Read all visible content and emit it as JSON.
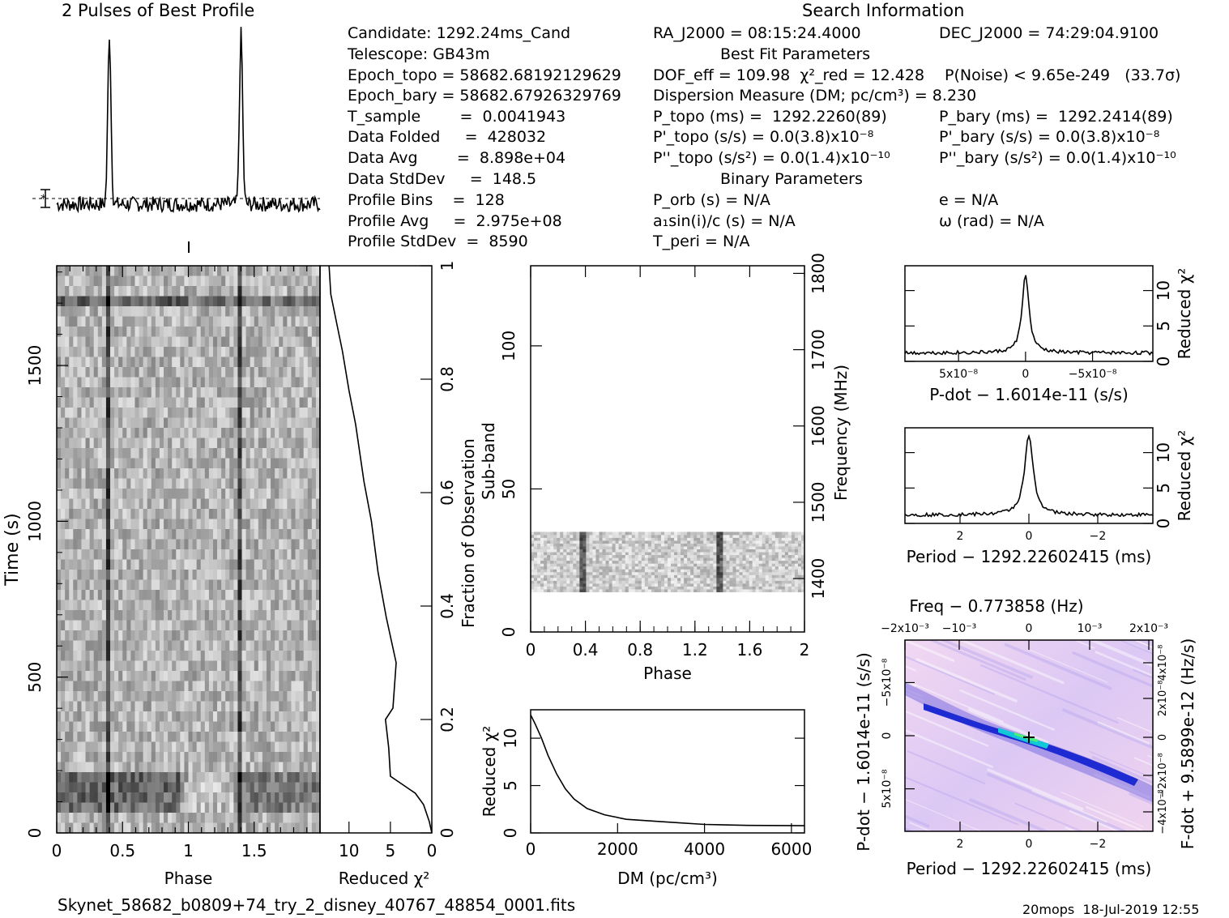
{
  "profile_title": "2 Pulses of Best Profile",
  "search_title": "Search Information",
  "info_left": [
    "Candidate:  1292.24ms_Cand",
    "Telescope:  GB43m",
    "Epoch_topo = 58682.68192129629",
    "Epoch_bary = 58682.67926329769",
    "T_sample        =  0.0041943",
    "Data Folded     =  428032",
    "Data Avg        =  8.898e+04",
    "Data StdDev     =  148.5",
    "Profile Bins    =  128",
    "Profile Avg     =  2.975e+08",
    "Profile StdDev  =  8590"
  ],
  "info_mid": [
    "RA_J2000 = 08:15:24.4000",
    "Best Fit Parameters",
    "DOF_eff = 109.98  χ²_red = 12.428",
    "Dispersion Measure (DM; pc/cm³) = 8.230",
    "P_topo (ms) =  1292.2260(89)",
    "P'_topo (s/s) = 0.0(3.8)x10⁻⁸",
    "P''_topo (s/s²) = 0.0(1.4)x10⁻¹⁰",
    "Binary Parameters",
    "P_orb (s) = N/A",
    "a₁sin(i)/c (s) = N/A",
    "T_peri = N/A"
  ],
  "info_right": [
    "DEC_J2000 = 74:29:04.9100",
    "P(Noise) < 9.65e-249   (33.7σ)",
    "P_bary (ms) =  1292.2414(89)",
    "P'_bary (s/s) = 0.0(3.8)x10⁻⁸",
    "P''_bary (s/s²) = 0.0(1.4)x10⁻¹⁰",
    "e = N/A",
    "ω (rad) = N/A"
  ],
  "footer": {
    "filename": "Skynet_58682_b0809+74_try_2_disney_40767_48854_0001.fits",
    "stamp": "20mops  18-Jul-2019 12:55"
  },
  "chart_data": [
    {
      "id": "best-profile",
      "type": "line",
      "title": "2 Pulses of Best Profile",
      "x_range": [
        0,
        2
      ],
      "peaks_phase": [
        0.4,
        1.4
      ],
      "peak_height_norm": 1.0,
      "baseline_norm": 0.0
    },
    {
      "id": "time-vs-phase",
      "type": "heatmap",
      "xlabel": "Phase",
      "ylabel": "Time (s)",
      "x_ticks": [
        "0",
        "0.5",
        "1",
        "1.5"
      ],
      "x_range": [
        0,
        2
      ],
      "y_ticks": [
        "0",
        "500",
        "1000",
        "1500"
      ],
      "y_range": [
        0,
        1820
      ],
      "pulse_phases": [
        0.4,
        1.4
      ]
    },
    {
      "id": "reduced-chi2-vs-time",
      "type": "line",
      "xlabel": "Reduced χ²",
      "ylabel": "Fraction of Observation",
      "x_ticks": [
        "10",
        "5",
        "0"
      ],
      "x_range": [
        13.5,
        0
      ],
      "y_ticks": [
        "0",
        "0.2",
        "0.4",
        "0.6",
        "0.8",
        "1"
      ],
      "y_range": [
        0,
        1
      ],
      "points": [
        [
          0,
          0
        ],
        [
          0.3,
          0.02
        ],
        [
          1,
          0.05
        ],
        [
          2,
          0.07
        ],
        [
          4,
          0.09
        ],
        [
          5,
          0.1
        ],
        [
          5.2,
          0.15
        ],
        [
          5.6,
          0.2
        ],
        [
          4.7,
          0.22
        ],
        [
          4.3,
          0.3
        ],
        [
          5.5,
          0.38
        ],
        [
          6.5,
          0.46
        ],
        [
          7.3,
          0.55
        ],
        [
          8.2,
          0.62
        ],
        [
          9.2,
          0.72
        ],
        [
          10,
          0.78
        ],
        [
          10.8,
          0.85
        ],
        [
          11.5,
          0.9
        ],
        [
          12.2,
          0.95
        ],
        [
          12.4,
          1
        ]
      ]
    },
    {
      "id": "subband-vs-phase",
      "type": "heatmap",
      "xlabel": "Phase",
      "ylabel": "Sub-band",
      "y2label": "Frequency (MHz)",
      "x_ticks": [
        "0",
        "0.4",
        "0.8",
        "1.2",
        "1.6",
        "2"
      ],
      "x_range": [
        0,
        2
      ],
      "y_ticks": [
        "0",
        "50",
        "100"
      ],
      "y_range": [
        0,
        128
      ],
      "y2_ticks": [
        "1400",
        "1500",
        "1600",
        "1700",
        "1800"
      ],
      "filled_subbands": [
        14,
        35
      ],
      "pulse_phases": [
        0.38,
        1.38
      ]
    },
    {
      "id": "chi2-vs-dm",
      "type": "line",
      "xlabel": "DM (pc/cm³)",
      "ylabel": "Reduced χ²",
      "x_ticks": [
        "0",
        "2000",
        "4000",
        "6000"
      ],
      "x_range": [
        0,
        6300
      ],
      "y_ticks": [
        "0",
        "5",
        "10"
      ],
      "y_range": [
        0,
        13
      ],
      "points": [
        [
          0,
          12.4
        ],
        [
          100,
          11.6
        ],
        [
          250,
          10
        ],
        [
          400,
          8.2
        ],
        [
          600,
          6.2
        ],
        [
          800,
          4.7
        ],
        [
          1000,
          3.6
        ],
        [
          1300,
          2.6
        ],
        [
          1700,
          1.9
        ],
        [
          2200,
          1.5
        ],
        [
          3000,
          1.15
        ],
        [
          4000,
          0.95
        ],
        [
          5000,
          0.85
        ],
        [
          6300,
          0.8
        ]
      ]
    },
    {
      "id": "chi2-vs-pdot",
      "type": "line",
      "xlabel": "P-dot − 1.6014e-11 (s/s)",
      "ylabel": "Reduced χ²",
      "x_ticks": [
        "5x10⁻⁸",
        "0",
        "−5x10⁻⁸"
      ],
      "x_range": [
        9e-08,
        -9.5e-08
      ],
      "y_ticks": [
        "0",
        "5",
        "10"
      ],
      "y_range": [
        0,
        13.5
      ],
      "peak": 12.4
    },
    {
      "id": "chi2-vs-period",
      "type": "line",
      "xlabel": "Period − 1292.22602415 (ms)",
      "ylabel": "Reduced χ²",
      "x_ticks": [
        "2",
        "0",
        "−2"
      ],
      "x_range": [
        3.6,
        -3.6
      ],
      "y_ticks": [
        "0",
        "5",
        "10"
      ],
      "y_range": [
        0,
        13.5
      ],
      "peak": 12.4
    },
    {
      "id": "pdot-vs-period",
      "type": "heatmap",
      "title": "Freq − 0.773858 (Hz)",
      "xlabel": "Period − 1292.22602415 (ms)",
      "ylabel": "P-dot − 1.6014e-11 (s/s)",
      "y2label": "F-dot + 9.5899e-12 (Hz/s)",
      "x_ticks": [
        "2",
        "0",
        "−2"
      ],
      "x_range": [
        3.6,
        -3.6
      ],
      "x2_ticks": [
        "−2x10⁻³",
        "−10⁻³",
        "0",
        "10⁻³",
        "2x10⁻³"
      ],
      "y_ticks": [
        "−5x10⁻⁸",
        "0",
        "5x10⁻⁸"
      ],
      "y_range": [
        -9e-08,
        9e-08
      ],
      "y2_ticks": [
        "4x10⁻⁸",
        "2x10⁻⁸",
        "0",
        "−2x10⁻⁸",
        "−4x10⁻⁸"
      ]
    }
  ]
}
